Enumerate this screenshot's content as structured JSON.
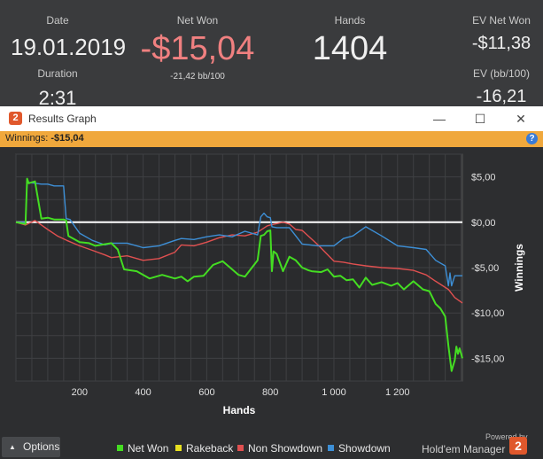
{
  "stats": {
    "date": {
      "label": "Date",
      "value": "19.01.2019"
    },
    "duration": {
      "label": "Duration",
      "value": "2:31"
    },
    "net_won": {
      "label": "Net Won",
      "value": "-$15,04",
      "sub": "-21,42 bb/100"
    },
    "hands": {
      "label": "Hands",
      "value": "1404"
    },
    "ev_net_won": {
      "label": "EV Net Won",
      "value": "-$11,38"
    },
    "ev_bb": {
      "label": "EV (bb/100)",
      "value": "-16,21"
    }
  },
  "window": {
    "title": "Results Graph",
    "logo": "2",
    "controls": {
      "minimize": "—",
      "maximize": "☐",
      "close": "✕"
    },
    "winnings_label": "Winnings:",
    "winnings_value": "-$15,04",
    "help": "?"
  },
  "chart_data": {
    "type": "line",
    "xlabel": "Hands",
    "ylabel": "Winnings",
    "xlim": [
      0,
      1404
    ],
    "ylim": [
      -17.5,
      7.5
    ],
    "xticks": [
      200,
      400,
      600,
      800,
      1000,
      1200
    ],
    "xtick_labels": [
      "200",
      "400",
      "600",
      "800",
      "1 000",
      "1 200"
    ],
    "yticks": [
      5,
      0,
      -5,
      -10,
      -15
    ],
    "ytick_labels": [
      "$5,00",
      "$0,00",
      "-$5,00",
      "-$10,00",
      "-$15,00"
    ],
    "grid": true,
    "zero_line": true,
    "series": [
      {
        "name": "Net Won",
        "color": "#44dd22",
        "x": [
          0,
          30,
          35,
          40,
          60,
          80,
          100,
          120,
          150,
          158,
          165,
          180,
          200,
          230,
          250,
          300,
          320,
          340,
          380,
          420,
          460,
          500,
          520,
          540,
          560,
          590,
          600,
          620,
          650,
          680,
          700,
          720,
          760,
          770,
          780,
          790,
          800,
          805,
          810,
          820,
          840,
          860,
          880,
          900,
          920,
          930,
          960,
          980,
          1000,
          1020,
          1040,
          1060,
          1080,
          1100,
          1120,
          1150,
          1180,
          1200,
          1220,
          1250,
          1280,
          1300,
          1320,
          1335,
          1350,
          1360,
          1365,
          1370,
          1380,
          1385,
          1390,
          1395,
          1400,
          1404
        ],
        "y": [
          0,
          -0.2,
          4.8,
          4.3,
          4.5,
          0.4,
          0.5,
          0.3,
          0.3,
          0.2,
          -1.5,
          -1.8,
          -2.2,
          -2.3,
          -2.6,
          -2.3,
          -3.0,
          -5.2,
          -5.4,
          -6.2,
          -5.8,
          -6.2,
          -6.0,
          -6.5,
          -6.0,
          -5.9,
          -5.5,
          -4.7,
          -4.3,
          -5.2,
          -5.8,
          -6.0,
          -4.2,
          -1.5,
          -1.4,
          -1.0,
          -0.9,
          -5.4,
          -3.2,
          -3.5,
          -5.4,
          -3.8,
          -4.2,
          -5.0,
          -5.3,
          -5.4,
          -5.5,
          -5.2,
          -6.0,
          -5.9,
          -6.4,
          -6.3,
          -7.2,
          -6.1,
          -6.9,
          -6.6,
          -7.0,
          -6.7,
          -7.4,
          -6.5,
          -7.4,
          -7.6,
          -9.0,
          -9.5,
          -10.4,
          -13.6,
          -15.0,
          -16.4,
          -15.2,
          -13.7,
          -14.5,
          -13.9,
          -14.5,
          -15.0
        ]
      },
      {
        "name": "Rakeback",
        "color": "#e8e020",
        "x": [
          0,
          1404
        ],
        "y": [
          0,
          0
        ]
      },
      {
        "name": "Non Showdown",
        "color": "#e05050",
        "x": [
          0,
          30,
          60,
          100,
          130,
          160,
          200,
          240,
          280,
          300,
          350,
          400,
          450,
          500,
          520,
          560,
          600,
          640,
          680,
          720,
          760,
          790,
          800,
          840,
          860,
          880,
          900,
          950,
          1000,
          1030,
          1060,
          1100,
          1150,
          1200,
          1250,
          1290,
          1320,
          1360,
          1380,
          1404
        ],
        "y": [
          0,
          -0.3,
          0.2,
          -0.8,
          -1.5,
          -2.0,
          -2.6,
          -3.1,
          -3.6,
          -3.9,
          -3.7,
          -4.2,
          -4.0,
          -3.3,
          -2.5,
          -2.6,
          -2.2,
          -1.7,
          -1.4,
          -1.5,
          -1.1,
          -0.4,
          -0.3,
          0,
          -0.2,
          -0.8,
          -0.9,
          -2.5,
          -4.3,
          -4.4,
          -4.6,
          -4.8,
          -5.0,
          -5.1,
          -5.3,
          -5.8,
          -6.5,
          -7.4,
          -8.3,
          -8.9
        ]
      },
      {
        "name": "Showdown",
        "color": "#3d8fd6",
        "x": [
          0,
          30,
          35,
          60,
          80,
          100,
          120,
          150,
          158,
          170,
          200,
          240,
          280,
          300,
          350,
          400,
          450,
          500,
          520,
          560,
          600,
          640,
          680,
          720,
          760,
          770,
          780,
          790,
          800,
          805,
          820,
          860,
          880,
          900,
          950,
          1000,
          1030,
          1060,
          1100,
          1150,
          1200,
          1250,
          1290,
          1320,
          1350,
          1360,
          1365,
          1370,
          1380,
          1404
        ],
        "y": [
          0,
          0,
          4.4,
          4.3,
          4.2,
          4.2,
          4.0,
          4.0,
          0.4,
          0.3,
          -1.2,
          -2.0,
          -2.5,
          -2.3,
          -2.3,
          -2.8,
          -2.6,
          -2.0,
          -1.8,
          -1.9,
          -1.6,
          -1.4,
          -1.6,
          -1.0,
          -1.4,
          0.6,
          1.0,
          0.6,
          0.5,
          -0.5,
          -0.6,
          -0.6,
          -1.5,
          -2.4,
          -2.6,
          -2.6,
          -1.8,
          -1.5,
          -0.5,
          -1.5,
          -2.6,
          -2.8,
          -3.0,
          -4.2,
          -4.8,
          -7.0,
          -5.6,
          -7.0,
          -5.9,
          -5.9
        ]
      }
    ]
  },
  "footer": {
    "options_label": "Options",
    "options_arrow": "▲",
    "legend": [
      {
        "label": "Net Won",
        "color": "#44dd22"
      },
      {
        "label": "Rakeback",
        "color": "#e8e020"
      },
      {
        "label": "Non Showdown",
        "color": "#e05050"
      },
      {
        "label": "Showdown",
        "color": "#3d8fd6"
      }
    ],
    "powered_by": "Powered by",
    "brand": "Hold'em Manager",
    "brand_logo": "2"
  }
}
